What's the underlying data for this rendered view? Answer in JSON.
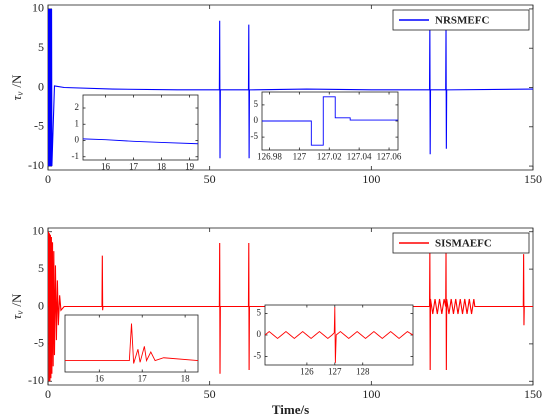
{
  "chart_data": [
    {
      "type": "line",
      "ylabel": {
        "symbol": "τ",
        "subscript": "v",
        "unit": "/N"
      },
      "xlim": [
        0,
        150
      ],
      "ylim": [
        -10.5,
        10.5
      ],
      "xticks": [
        0,
        50,
        100,
        150
      ],
      "yticks": [
        -10,
        -5,
        0,
        5,
        10
      ],
      "legend": "northeast",
      "series": [
        {
          "name": "NRSMEFC",
          "color": "#0000ff",
          "x": [
            0,
            0.1,
            0.2,
            0.3,
            0.4,
            0.5,
            0.6,
            0.7,
            0.8,
            0.9,
            1.0,
            1.1,
            1.2,
            2,
            5,
            20,
            40,
            53,
            53.1,
            53.2,
            53.3,
            62,
            62.1,
            62.2,
            62.3,
            80,
            100,
            118,
            118.1,
            118.2,
            118.3,
            123,
            123.1,
            123.2,
            123.3,
            150
          ],
          "values": [
            0,
            10,
            -10,
            10,
            -10,
            10,
            -10,
            10,
            -10,
            10,
            -10,
            10,
            -10,
            0.2,
            0,
            -0.2,
            -0.3,
            -0.3,
            8.5,
            -9,
            -0.3,
            -0.3,
            8,
            -9,
            -0.3,
            -0.2,
            -0.3,
            -0.3,
            7.8,
            -8.5,
            -0.3,
            -0.3,
            7.7,
            -7.8,
            -0.3,
            -0.2
          ]
        }
      ],
      "insets": [
        {
          "type": "line",
          "xlim": [
            15.2,
            19.3
          ],
          "ylim": [
            -1.2,
            2.8
          ],
          "xticks": [
            16,
            17,
            18,
            19
          ],
          "yticks": [
            -1,
            0,
            1,
            2
          ],
          "series": [
            {
              "color": "#0000ff",
              "x": [
                15.2,
                16,
                17,
                18,
                19.3
              ],
              "values": [
                0.1,
                0.05,
                -0.05,
                -0.12,
                -0.2
              ]
            }
          ]
        },
        {
          "type": "line",
          "xlim": [
            126.975,
            127.066
          ],
          "ylim": [
            -9,
            9
          ],
          "xticks": [
            126.98,
            127,
            127.02,
            127.04,
            127.06
          ],
          "yticks": [
            -5,
            0,
            5
          ],
          "series": [
            {
              "color": "#0000ff",
              "x": [
                126.975,
                127.008,
                127.008,
                127.016,
                127.016,
                127.024,
                127.024,
                127.034,
                127.034,
                127.066
              ],
              "values": [
                0,
                0,
                -7.5,
                -7.5,
                7.5,
                7.5,
                1,
                1,
                0.3,
                0.3
              ]
            }
          ]
        }
      ]
    },
    {
      "type": "line",
      "ylabel": {
        "symbol": "τ",
        "subscript": "v",
        "unit": "/N"
      },
      "xlabel": "Time/s",
      "xlim": [
        0,
        150
      ],
      "ylim": [
        -10.5,
        10.5
      ],
      "xticks": [
        0,
        50,
        100,
        150
      ],
      "yticks": [
        -10,
        -5,
        0,
        5,
        10
      ],
      "legend": "northeast",
      "series": [
        {
          "name": "SISMAEFC",
          "color": "#ff0000",
          "x": [
            0,
            0.15,
            0.3,
            0.45,
            0.6,
            0.75,
            0.9,
            1.05,
            1.2,
            1.4,
            1.6,
            1.8,
            2.0,
            2.3,
            2.6,
            2.9,
            3.2,
            3.6,
            4,
            5,
            16.7,
            16.8,
            16.9,
            17,
            30,
            53,
            53.1,
            53.2,
            53.3,
            62,
            62.1,
            62.2,
            62.3,
            100,
            118,
            118.1,
            118.2,
            118.3,
            119,
            119.7,
            120.4,
            121.1,
            121.8,
            122.5,
            123,
            123.1,
            123.2,
            123.3,
            124,
            124.7,
            125.4,
            126.1,
            126.8,
            127.5,
            128.2,
            128.9,
            129.6,
            130.3,
            131,
            131.7,
            132,
            140,
            147,
            147.1,
            147.2,
            147.3,
            150
          ],
          "values": [
            0,
            10,
            -10,
            9.8,
            -10,
            9.6,
            -9.6,
            9.3,
            -9,
            8.6,
            -8,
            7.4,
            -6.5,
            5.5,
            -4.5,
            3.5,
            -2.5,
            1.5,
            -0.5,
            0,
            0,
            6.8,
            -0.5,
            0,
            0,
            0,
            8.5,
            -9,
            0,
            0,
            8.5,
            -8.5,
            0,
            0,
            0,
            7.5,
            -8.5,
            1,
            -1,
            1,
            -1,
            1,
            -1,
            1,
            0,
            7.5,
            -8.5,
            1,
            -1,
            1,
            -1,
            1,
            -1,
            1,
            -1,
            1,
            -1,
            1,
            -1,
            1,
            0,
            0,
            0,
            7,
            -2.5,
            0,
            0
          ]
        }
      ],
      "insets": [
        {
          "type": "line",
          "xlim": [
            15.2,
            18.3
          ],
          "ylim": [
            -2,
            8
          ],
          "xticks": [
            16,
            17,
            18
          ],
          "series": [
            {
              "color": "#ff0000",
              "x": [
                15.2,
                16.7,
                16.75,
                16.8,
                16.9,
                16.95,
                17.05,
                17.1,
                17.2,
                17.3,
                17.5,
                18.3
              ],
              "values": [
                0,
                0,
                6.5,
                -0.5,
                2,
                -0.3,
                2.5,
                0,
                1.5,
                0,
                0.5,
                0
              ]
            }
          ]
        },
        {
          "type": "line",
          "xlim": [
            124.5,
            129.8
          ],
          "ylim": [
            -7,
            7
          ],
          "xticks": [
            126,
            127,
            128
          ],
          "yticks": [
            -5,
            0,
            5
          ],
          "series": [
            {
              "color": "#ff0000",
              "x": [
                124.5,
                124.65,
                124.8,
                124.95,
                125.1,
                125.25,
                125.4,
                125.55,
                125.7,
                125.85,
                126,
                126.15,
                126.3,
                126.45,
                126.6,
                126.75,
                126.9,
                126.98,
                127,
                127.02,
                127.05,
                127.2,
                127.35,
                127.5,
                127.65,
                127.8,
                127.95,
                128.1,
                128.25,
                128.4,
                128.55,
                128.7,
                128.85,
                129,
                129.15,
                129.3,
                129.45,
                129.6,
                129.8
              ],
              "values": [
                0,
                0.8,
                0,
                -0.8,
                0,
                0.8,
                0,
                -0.8,
                0,
                0.8,
                0,
                -0.8,
                0,
                0.8,
                0,
                -0.8,
                0,
                0.5,
                6.5,
                -6.5,
                0,
                0.8,
                0,
                -0.8,
                0,
                0.8,
                0,
                -0.8,
                0,
                0.8,
                0,
                -0.8,
                0,
                0.8,
                0,
                -0.8,
                0,
                0.8,
                0
              ]
            }
          ]
        }
      ]
    }
  ]
}
